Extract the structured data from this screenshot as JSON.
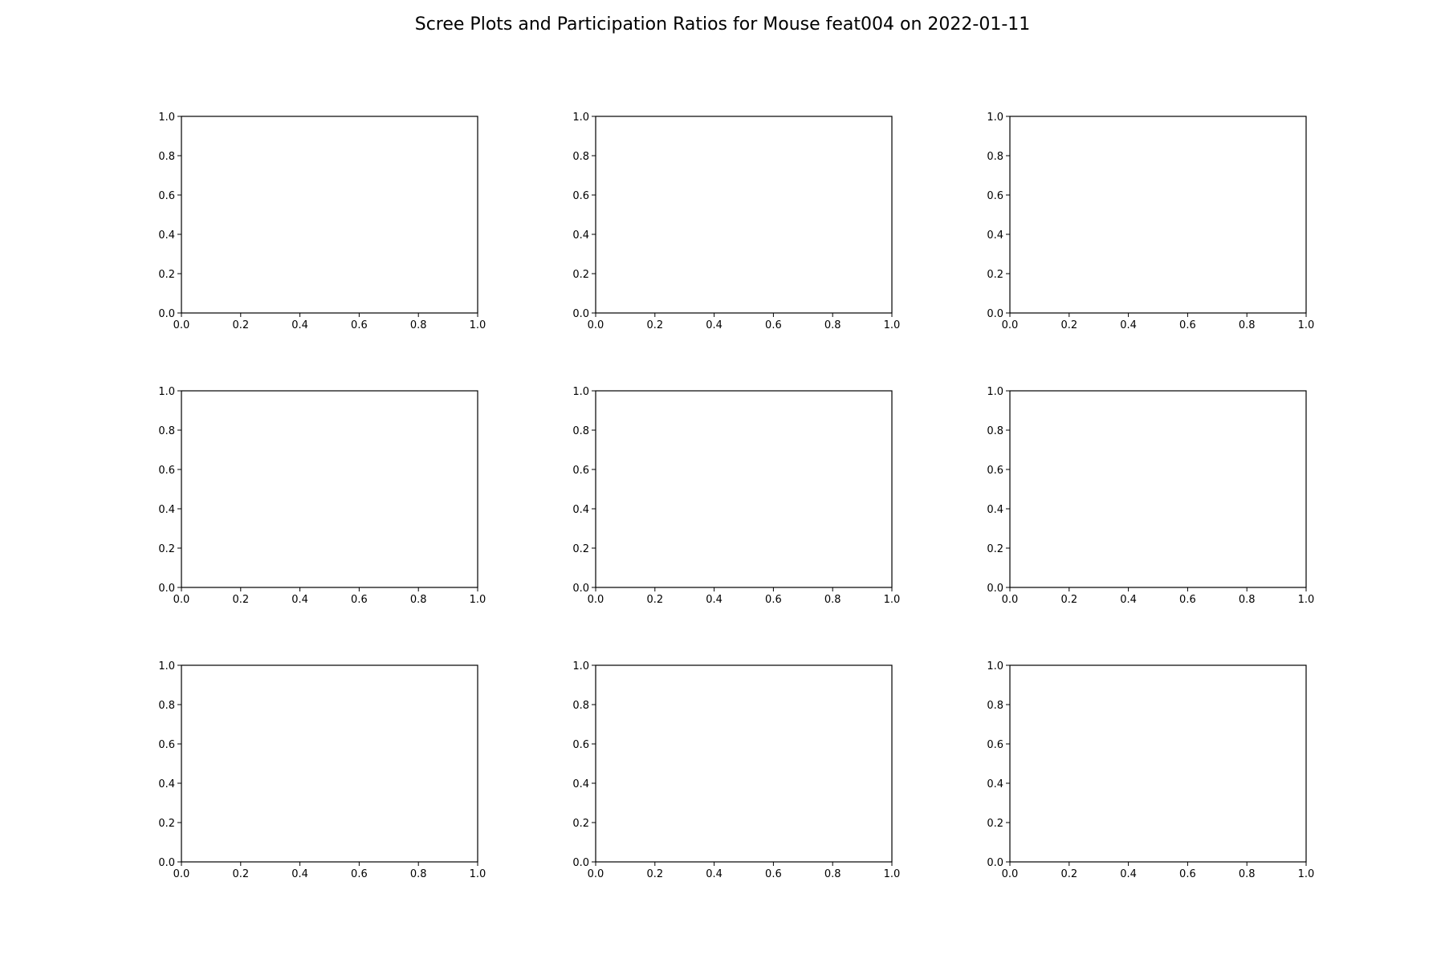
{
  "figure": {
    "title": "Scree Plots and Participation Ratios for Mouse feat004 on 2022-01-11",
    "background": "#ffffff"
  },
  "chart_data": [
    {
      "type": "line",
      "title": "",
      "xlabel": "",
      "ylabel": "",
      "xlim": [
        0,
        1
      ],
      "ylim": [
        0,
        1
      ],
      "x_ticks": [
        "0.0",
        "0.2",
        "0.4",
        "0.6",
        "0.8",
        "1.0"
      ],
      "y_ticks": [
        "0.0",
        "0.2",
        "0.4",
        "0.6",
        "0.8",
        "1.0"
      ],
      "series": [],
      "grid": false
    },
    {
      "type": "line",
      "title": "",
      "xlabel": "",
      "ylabel": "",
      "xlim": [
        0,
        1
      ],
      "ylim": [
        0,
        1
      ],
      "x_ticks": [
        "0.0",
        "0.2",
        "0.4",
        "0.6",
        "0.8",
        "1.0"
      ],
      "y_ticks": [
        "0.0",
        "0.2",
        "0.4",
        "0.6",
        "0.8",
        "1.0"
      ],
      "series": [],
      "grid": false
    },
    {
      "type": "line",
      "title": "",
      "xlabel": "",
      "ylabel": "",
      "xlim": [
        0,
        1
      ],
      "ylim": [
        0,
        1
      ],
      "x_ticks": [
        "0.0",
        "0.2",
        "0.4",
        "0.6",
        "0.8",
        "1.0"
      ],
      "y_ticks": [
        "0.0",
        "0.2",
        "0.4",
        "0.6",
        "0.8",
        "1.0"
      ],
      "series": [],
      "grid": false
    },
    {
      "type": "line",
      "title": "",
      "xlabel": "",
      "ylabel": "",
      "xlim": [
        0,
        1
      ],
      "ylim": [
        0,
        1
      ],
      "x_ticks": [
        "0.0",
        "0.2",
        "0.4",
        "0.6",
        "0.8",
        "1.0"
      ],
      "y_ticks": [
        "0.0",
        "0.2",
        "0.4",
        "0.6",
        "0.8",
        "1.0"
      ],
      "series": [],
      "grid": false
    },
    {
      "type": "line",
      "title": "",
      "xlabel": "",
      "ylabel": "",
      "xlim": [
        0,
        1
      ],
      "ylim": [
        0,
        1
      ],
      "x_ticks": [
        "0.0",
        "0.2",
        "0.4",
        "0.6",
        "0.8",
        "1.0"
      ],
      "y_ticks": [
        "0.0",
        "0.2",
        "0.4",
        "0.6",
        "0.8",
        "1.0"
      ],
      "series": [],
      "grid": false
    },
    {
      "type": "line",
      "title": "",
      "xlabel": "",
      "ylabel": "",
      "xlim": [
        0,
        1
      ],
      "ylim": [
        0,
        1
      ],
      "x_ticks": [
        "0.0",
        "0.2",
        "0.4",
        "0.6",
        "0.8",
        "1.0"
      ],
      "y_ticks": [
        "0.0",
        "0.2",
        "0.4",
        "0.6",
        "0.8",
        "1.0"
      ],
      "series": [],
      "grid": false
    },
    {
      "type": "line",
      "title": "",
      "xlabel": "",
      "ylabel": "",
      "xlim": [
        0,
        1
      ],
      "ylim": [
        0,
        1
      ],
      "x_ticks": [
        "0.0",
        "0.2",
        "0.4",
        "0.6",
        "0.8",
        "1.0"
      ],
      "y_ticks": [
        "0.0",
        "0.2",
        "0.4",
        "0.6",
        "0.8",
        "1.0"
      ],
      "series": [],
      "grid": false
    },
    {
      "type": "line",
      "title": "",
      "xlabel": "",
      "ylabel": "",
      "xlim": [
        0,
        1
      ],
      "ylim": [
        0,
        1
      ],
      "x_ticks": [
        "0.0",
        "0.2",
        "0.4",
        "0.6",
        "0.8",
        "1.0"
      ],
      "y_ticks": [
        "0.0",
        "0.2",
        "0.4",
        "0.6",
        "0.8",
        "1.0"
      ],
      "series": [],
      "grid": false
    },
    {
      "type": "line",
      "title": "",
      "xlabel": "",
      "ylabel": "",
      "xlim": [
        0,
        1
      ],
      "ylim": [
        0,
        1
      ],
      "x_ticks": [
        "0.0",
        "0.2",
        "0.4",
        "0.6",
        "0.8",
        "1.0"
      ],
      "y_ticks": [
        "0.0",
        "0.2",
        "0.4",
        "0.6",
        "0.8",
        "1.0"
      ],
      "series": [],
      "grid": false
    }
  ]
}
